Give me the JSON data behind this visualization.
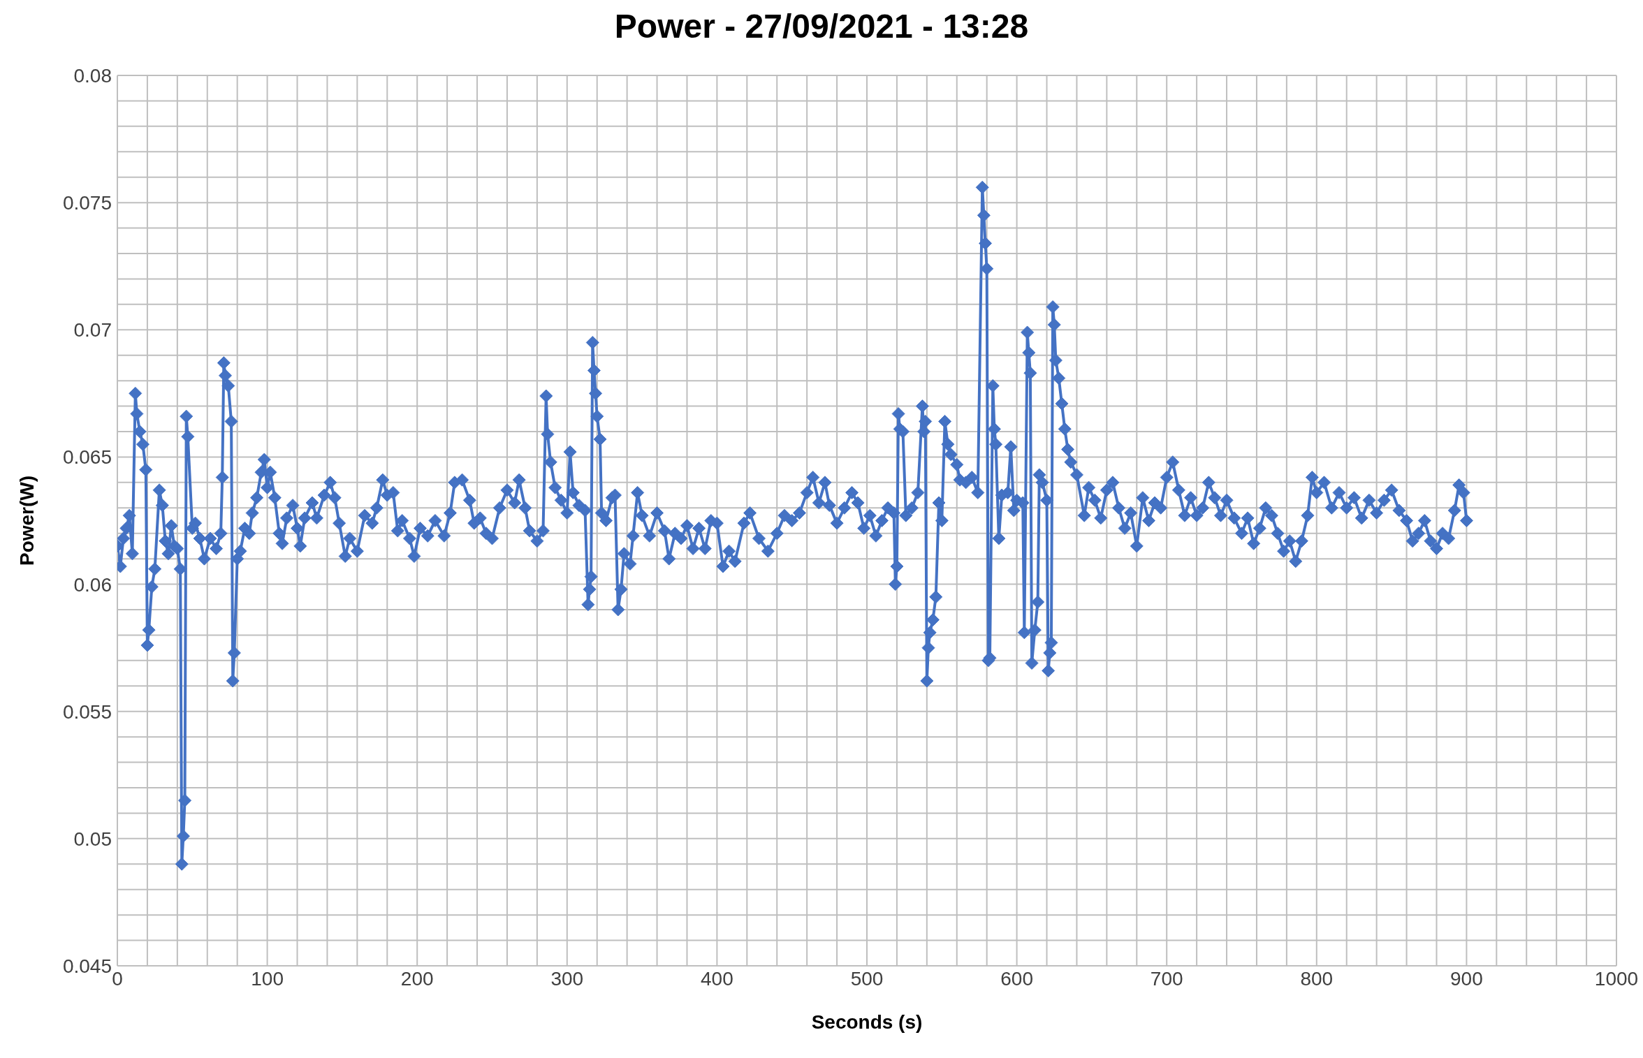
{
  "chart_data": {
    "type": "line",
    "title": "Power - 27/09/2021 - 13:28",
    "xlabel": "Seconds (s)",
    "ylabel": "Power(W)",
    "xlim": [
      0,
      1000
    ],
    "ylim": [
      0.045,
      0.08
    ],
    "xticks": [
      0,
      {
        "value": 20,
        "label": null
      },
      {
        "value": 40,
        "label": null
      },
      {
        "value": 60,
        "label": null
      },
      {
        "value": 80,
        "label": null
      },
      100,
      {
        "value": 120,
        "label": null
      },
      {
        "value": 140,
        "label": null
      },
      {
        "value": 160,
        "label": null
      },
      {
        "value": 180,
        "label": null
      },
      200,
      {
        "value": 220,
        "label": null
      },
      {
        "value": 240,
        "label": null
      },
      {
        "value": 260,
        "label": null
      },
      {
        "value": 280,
        "label": null
      },
      300,
      {
        "value": 320,
        "label": null
      },
      {
        "value": 340,
        "label": null
      },
      {
        "value": 360,
        "label": null
      },
      {
        "value": 380,
        "label": null
      },
      400,
      {
        "value": 420,
        "label": null
      },
      {
        "value": 440,
        "label": null
      },
      {
        "value": 460,
        "label": null
      },
      {
        "value": 480,
        "label": null
      },
      500,
      {
        "value": 520,
        "label": null
      },
      {
        "value": 540,
        "label": null
      },
      {
        "value": 560,
        "label": null
      },
      {
        "value": 580,
        "label": null
      },
      600,
      {
        "value": 620,
        "label": null
      },
      {
        "value": 640,
        "label": null
      },
      {
        "value": 660,
        "label": null
      },
      {
        "value": 680,
        "label": null
      },
      700,
      {
        "value": 720,
        "label": null
      },
      {
        "value": 740,
        "label": null
      },
      {
        "value": 760,
        "label": null
      },
      {
        "value": 780,
        "label": null
      },
      800,
      {
        "value": 820,
        "label": null
      },
      {
        "value": 840,
        "label": null
      },
      {
        "value": 860,
        "label": null
      },
      {
        "value": 880,
        "label": null
      },
      900,
      {
        "value": 920,
        "label": null
      },
      {
        "value": 940,
        "label": null
      },
      {
        "value": 960,
        "label": null
      },
      {
        "value": 980,
        "label": null
      },
      1000
    ],
    "yticks": [
      0.045,
      {
        "value": 0.046,
        "label": null
      },
      {
        "value": 0.047,
        "label": null
      },
      {
        "value": 0.048,
        "label": null
      },
      {
        "value": 0.049,
        "label": null
      },
      0.05,
      {
        "value": 0.051,
        "label": null
      },
      {
        "value": 0.052,
        "label": null
      },
      {
        "value": 0.053,
        "label": null
      },
      {
        "value": 0.054,
        "label": null
      },
      0.055,
      {
        "value": 0.056,
        "label": null
      },
      {
        "value": 0.057,
        "label": null
      },
      {
        "value": 0.058,
        "label": null
      },
      {
        "value": 0.059,
        "label": null
      },
      0.06,
      {
        "value": 0.061,
        "label": null
      },
      {
        "value": 0.062,
        "label": null
      },
      {
        "value": 0.063,
        "label": null
      },
      {
        "value": 0.064,
        "label": null
      },
      0.065,
      {
        "value": 0.066,
        "label": null
      },
      {
        "value": 0.067,
        "label": null
      },
      {
        "value": 0.068,
        "label": null
      },
      {
        "value": 0.069,
        "label": null
      },
      0.07,
      {
        "value": 0.071,
        "label": null
      },
      {
        "value": 0.072,
        "label": null
      },
      {
        "value": 0.073,
        "label": null
      },
      {
        "value": 0.074,
        "label": null
      },
      0.075,
      {
        "value": 0.076,
        "label": null
      },
      {
        "value": 0.077,
        "label": null
      },
      {
        "value": 0.078,
        "label": null
      },
      {
        "value": 0.079,
        "label": null
      },
      0.08
    ],
    "grid": true,
    "legend": false,
    "marker": "diamond",
    "line_style": "solid",
    "series": [
      {
        "color": "#4472c4",
        "x": [
          0,
          2,
          4,
          6,
          8,
          10,
          12,
          13,
          15,
          17,
          19,
          20,
          21,
          23,
          25,
          28,
          30,
          32,
          34,
          36,
          38,
          40,
          42,
          43,
          44,
          45,
          46,
          47,
          50,
          52,
          55,
          58,
          62,
          66,
          69,
          70,
          71,
          72,
          74,
          76,
          77,
          78,
          80,
          82,
          85,
          88,
          90,
          93,
          96,
          98,
          100,
          102,
          105,
          108,
          110,
          113,
          117,
          120,
          122,
          125,
          130,
          133,
          138,
          142,
          145,
          148,
          152,
          155,
          160,
          165,
          170,
          173,
          177,
          180,
          184,
          187,
          190,
          195,
          198,
          202,
          207,
          212,
          218,
          222,
          225,
          230,
          235,
          238,
          242,
          246,
          250,
          255,
          260,
          265,
          268,
          272,
          275,
          280,
          284,
          286,
          287,
          289,
          292,
          296,
          300,
          302,
          304,
          308,
          312,
          314,
          315,
          316,
          317,
          318,
          319,
          320,
          322,
          323,
          326,
          330,
          332,
          334,
          336,
          338,
          342,
          344,
          347,
          350,
          355,
          360,
          365,
          368,
          372,
          376,
          380,
          384,
          388,
          392,
          396,
          400,
          404,
          408,
          412,
          418,
          422,
          428,
          434,
          440,
          445,
          450,
          455,
          460,
          464,
          468,
          472,
          475,
          480,
          485,
          490,
          494,
          498,
          502,
          506,
          510,
          514,
          518,
          519,
          520,
          521,
          522,
          524,
          526,
          530,
          534,
          537,
          538,
          539,
          540,
          541,
          542,
          544,
          546,
          548,
          550,
          552,
          554,
          556,
          560,
          562,
          566,
          570,
          574,
          577,
          578,
          579,
          580,
          581,
          582,
          584,
          585,
          586,
          588,
          590,
          594,
          596,
          598,
          600,
          604,
          605,
          607,
          608,
          609,
          610,
          612,
          614,
          615,
          617,
          620,
          621,
          622,
          623,
          624,
          625,
          626,
          628,
          630,
          632,
          634,
          636,
          640,
          645,
          648,
          652,
          656,
          660,
          664,
          668,
          672,
          676,
          680,
          684,
          688,
          692,
          696,
          700,
          704,
          708,
          712,
          716,
          720,
          724,
          728,
          732,
          736,
          740,
          745,
          750,
          754,
          758,
          762,
          766,
          770,
          774,
          778,
          782,
          786,
          790,
          794,
          797,
          800,
          805,
          810,
          815,
          820,
          825,
          830,
          835,
          840,
          845,
          850,
          855,
          860,
          864,
          868,
          872,
          876,
          880,
          884,
          888,
          892,
          895,
          898,
          900
        ],
        "values": [
          0.0615,
          0.0607,
          0.0618,
          0.0622,
          0.0627,
          0.0612,
          0.0675,
          0.0667,
          0.066,
          0.0655,
          0.0645,
          0.0576,
          0.0582,
          0.0599,
          0.0606,
          0.0637,
          0.0631,
          0.0617,
          0.0612,
          0.0623,
          0.0615,
          0.0614,
          0.0606,
          0.049,
          0.0501,
          0.0515,
          0.0666,
          0.0658,
          0.0622,
          0.0624,
          0.0618,
          0.061,
          0.0618,
          0.0614,
          0.062,
          0.0642,
          0.0687,
          0.0682,
          0.0678,
          0.0664,
          0.0562,
          0.0573,
          0.061,
          0.0613,
          0.0622,
          0.062,
          0.0628,
          0.0634,
          0.0644,
          0.0649,
          0.0638,
          0.0644,
          0.0634,
          0.062,
          0.0616,
          0.0626,
          0.0631,
          0.0622,
          0.0615,
          0.0626,
          0.0632,
          0.0626,
          0.0635,
          0.064,
          0.0634,
          0.0624,
          0.0611,
          0.0618,
          0.0613,
          0.0627,
          0.0624,
          0.063,
          0.0641,
          0.0635,
          0.0636,
          0.0621,
          0.0625,
          0.0618,
          0.0611,
          0.0622,
          0.0619,
          0.0625,
          0.0619,
          0.0628,
          0.064,
          0.0641,
          0.0633,
          0.0624,
          0.0626,
          0.062,
          0.0618,
          0.063,
          0.0637,
          0.0632,
          0.0641,
          0.063,
          0.0621,
          0.0617,
          0.0621,
          0.0674,
          0.0659,
          0.0648,
          0.0638,
          0.0633,
          0.0628,
          0.0652,
          0.0636,
          0.0631,
          0.0629,
          0.0592,
          0.0598,
          0.0603,
          0.0695,
          0.0684,
          0.0675,
          0.0666,
          0.0657,
          0.0628,
          0.0625,
          0.0634,
          0.0635,
          0.059,
          0.0598,
          0.0612,
          0.0608,
          0.0619,
          0.0636,
          0.0627,
          0.0619,
          0.0628,
          0.0621,
          0.061,
          0.062,
          0.0618,
          0.0623,
          0.0614,
          0.0622,
          0.0614,
          0.0625,
          0.0624,
          0.0607,
          0.0613,
          0.0609,
          0.0624,
          0.0628,
          0.0618,
          0.0613,
          0.062,
          0.0627,
          0.0625,
          0.0628,
          0.0636,
          0.0642,
          0.0632,
          0.064,
          0.0631,
          0.0624,
          0.063,
          0.0636,
          0.0632,
          0.0622,
          0.0627,
          0.0619,
          0.0625,
          0.063,
          0.0628,
          0.06,
          0.0607,
          0.0667,
          0.0661,
          0.066,
          0.0627,
          0.063,
          0.0636,
          0.067,
          0.066,
          0.0664,
          0.0562,
          0.0575,
          0.0581,
          0.0586,
          0.0595,
          0.0632,
          0.0625,
          0.0664,
          0.0655,
          0.0651,
          0.0647,
          0.0641,
          0.064,
          0.0642,
          0.0636,
          0.0756,
          0.0745,
          0.0734,
          0.0724,
          0.057,
          0.0571,
          0.0678,
          0.0661,
          0.0655,
          0.0618,
          0.0635,
          0.0636,
          0.0654,
          0.0629,
          0.0633,
          0.0632,
          0.0581,
          0.0699,
          0.0691,
          0.0683,
          0.0569,
          0.0582,
          0.0593,
          0.0643,
          0.064,
          0.0633,
          0.0566,
          0.0573,
          0.0577,
          0.0709,
          0.0702,
          0.0688,
          0.0681,
          0.0671,
          0.0661,
          0.0653,
          0.0648,
          0.0643,
          0.0627,
          0.0638,
          0.0633,
          0.0626,
          0.0637,
          0.064,
          0.063,
          0.0622,
          0.0628,
          0.0615,
          0.0634,
          0.0625,
          0.0632,
          0.063,
          0.0642,
          0.0648,
          0.0637,
          0.0627,
          0.0634,
          0.0627,
          0.063,
          0.064,
          0.0634,
          0.0627,
          0.0633,
          0.0626,
          0.062,
          0.0626,
          0.0616,
          0.0622,
          0.063,
          0.0627,
          0.062,
          0.0613,
          0.0617,
          0.0609,
          0.0617,
          0.0627,
          0.0642,
          0.0636,
          0.064,
          0.063,
          0.0636,
          0.063,
          0.0634,
          0.0626,
          0.0633,
          0.0628,
          0.0633,
          0.0637,
          0.0629,
          0.0625,
          0.0617,
          0.062,
          0.0625,
          0.0617,
          0.0614,
          0.062,
          0.0618,
          0.0629,
          0.0639,
          0.0636,
          0.0625
        ]
      }
    ]
  }
}
